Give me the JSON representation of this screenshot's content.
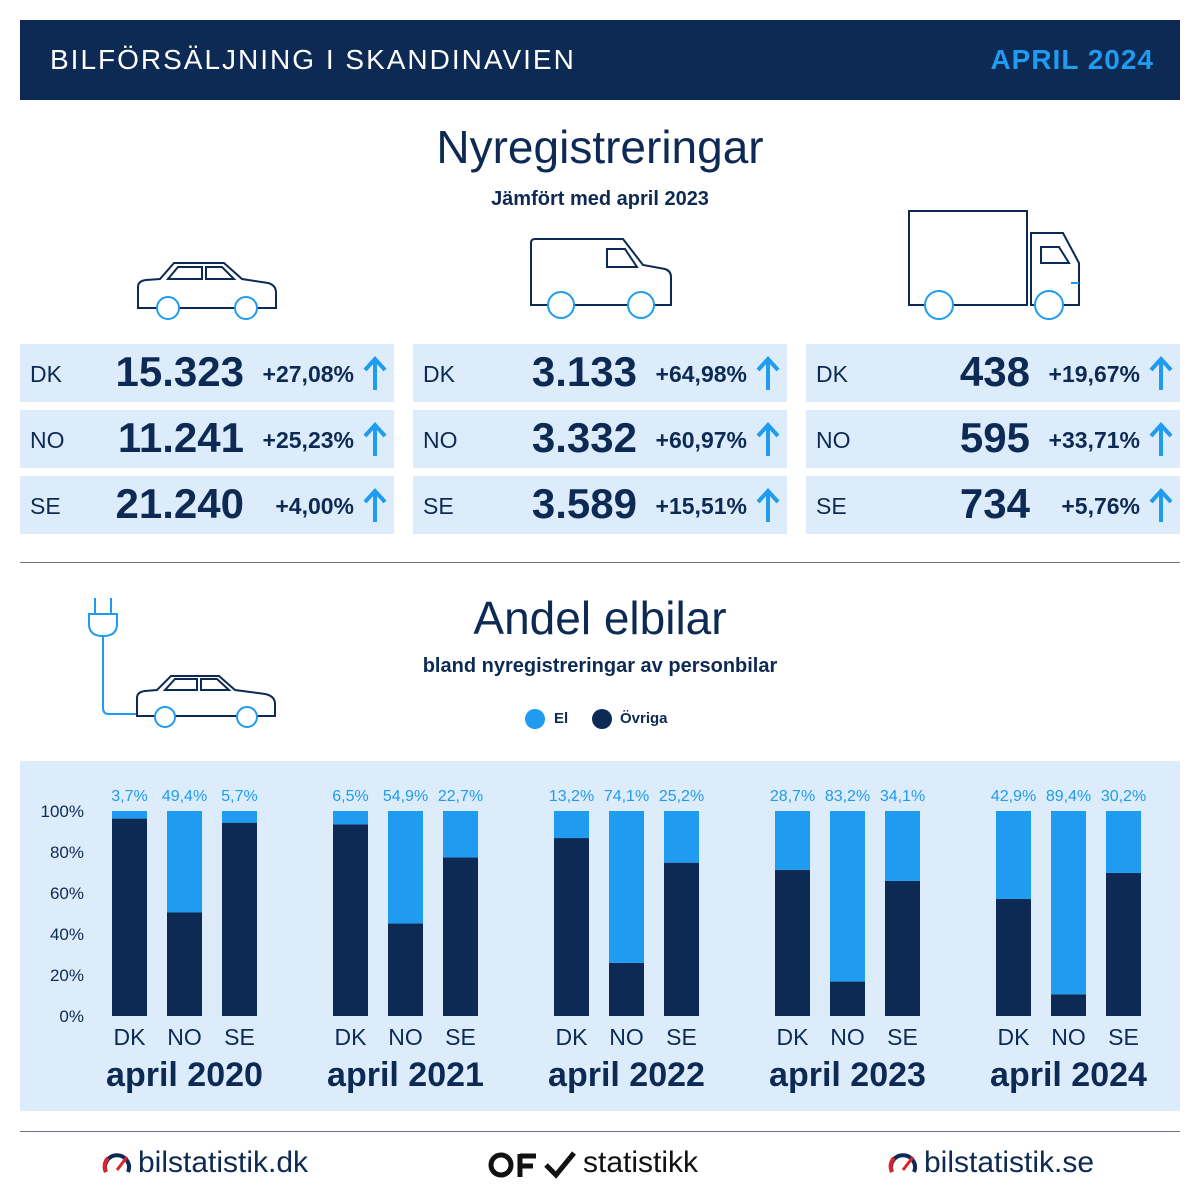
{
  "header": {
    "title": "BILFÖRSÄLJNING I SKANDINAVIEN",
    "date": "APRIL 2024"
  },
  "registrations": {
    "title": "Nyregistreringar",
    "subtitle": "Jämfört med april 2023",
    "groups": [
      {
        "icon": "car-icon",
        "rows": [
          {
            "country": "DK",
            "value": "15.323",
            "change": "+27,08%"
          },
          {
            "country": "NO",
            "value": "11.241",
            "change": "+25,23%"
          },
          {
            "country": "SE",
            "value": "21.240",
            "change": "+4,00%"
          }
        ]
      },
      {
        "icon": "van-icon",
        "rows": [
          {
            "country": "DK",
            "value": "3.133",
            "change": "+64,98%"
          },
          {
            "country": "NO",
            "value": "3.332",
            "change": "+60,97%"
          },
          {
            "country": "SE",
            "value": "3.589",
            "change": "+15,51%"
          }
        ]
      },
      {
        "icon": "truck-icon",
        "rows": [
          {
            "country": "DK",
            "value": "438",
            "change": "+19,67%"
          },
          {
            "country": "NO",
            "value": "595",
            "change": "+33,71%"
          },
          {
            "country": "SE",
            "value": "734",
            "change": "+5,76%"
          }
        ]
      }
    ]
  },
  "ev": {
    "title": "Andel elbilar",
    "subtitle": "bland nyregistreringar av personbilar",
    "legend": [
      {
        "label": "El",
        "color": "#1f9bf0"
      },
      {
        "label": "Övriga",
        "color": "#0d2a54"
      }
    ]
  },
  "chart_data": {
    "type": "bar",
    "stacked": true,
    "ylim": [
      0,
      100
    ],
    "yticks": [
      "0%",
      "20%",
      "40%",
      "60%",
      "80%",
      "100%"
    ],
    "groups": [
      "april 2020",
      "april 2021",
      "april 2022",
      "april 2023",
      "april 2024"
    ],
    "categories": [
      "DK",
      "NO",
      "SE"
    ],
    "series": [
      {
        "name": "El",
        "color": "#1f9bf0",
        "values": [
          [
            3.7,
            49.4,
            5.7
          ],
          [
            6.5,
            54.9,
            22.7
          ],
          [
            13.2,
            74.1,
            25.2
          ],
          [
            28.7,
            83.2,
            34.1
          ],
          [
            42.9,
            89.4,
            30.2
          ]
        ]
      },
      {
        "name": "Övriga",
        "color": "#0d2a54",
        "values": [
          [
            96.3,
            50.6,
            94.3
          ],
          [
            93.5,
            45.1,
            77.3
          ],
          [
            86.8,
            25.9,
            74.8
          ],
          [
            71.3,
            16.8,
            65.9
          ],
          [
            57.1,
            10.6,
            69.8
          ]
        ]
      }
    ],
    "labels": [
      [
        "3,7%",
        "49,4%",
        "5,7%"
      ],
      [
        "6,5%",
        "54,9%",
        "22,7%"
      ],
      [
        "13,2%",
        "74,1%",
        "25,2%"
      ],
      [
        "28,7%",
        "83,2%",
        "34,1%"
      ],
      [
        "42,9%",
        "89,4%",
        "30,2%"
      ]
    ],
    "grid": false
  },
  "footer": {
    "left": "bilstatistik.dk",
    "center": "statistikk",
    "right": "bilstatistik.se"
  },
  "colors": {
    "navy": "#0d2a54",
    "blue": "#1f9bf0",
    "panel": "#dcecfb"
  }
}
